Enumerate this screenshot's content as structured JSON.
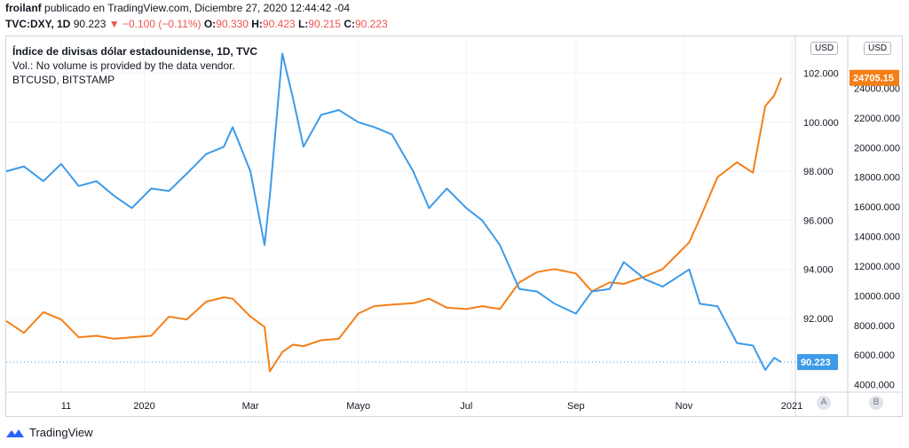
{
  "header": {
    "author": "froilanf",
    "published": "publicado en TradingView.com, Diciembre 27, 2020 12:44:42 -04",
    "symbol": "TVC:DXY, 1D",
    "last": "90.223",
    "change": "−0.100 (−0.11%)",
    "o_label": "O:",
    "o_value": "90.330",
    "h_label": "H:",
    "h_value": "90.423",
    "l_label": "L:",
    "l_value": "90.215",
    "c_label": "C:",
    "c_value": "90.223"
  },
  "legend": {
    "title": "Índice de divisas dólar estadounidense, 1D, TVC",
    "volume": "Vol.: No volume is provided by the data vendor.",
    "compare": "BTCUSD, BITSTAMP"
  },
  "currency_left": "USD",
  "currency_right": "USD",
  "footer": {
    "brand": "TradingView"
  },
  "scale_buttons": [
    "A",
    "B"
  ],
  "colors": {
    "dxy": "#3d9be9",
    "btc": "#f57f17",
    "grid": "#f0f3fa",
    "text": "#131722"
  },
  "chart_data": [
    {
      "type": "line",
      "name": "DXY",
      "title": "Índice de divisas dólar estadounidense, 1D, TVC",
      "y_axis": "left-scale",
      "ylim": [
        89.0,
        103.5
      ],
      "yticks": [
        "92.000",
        "94.000",
        "96.000",
        "98.000",
        "100.000",
        "102.000"
      ],
      "ytick_values": [
        92,
        94,
        96,
        98,
        100,
        102
      ],
      "last_value_label": "90.223",
      "x_labels": [
        "11",
        "2020",
        "Mar",
        "Mayo",
        "Jul",
        "Sep",
        "Nov",
        "2021"
      ],
      "x_label_dates": [
        "2019-11-15",
        "2020-01-01",
        "2020-03-01",
        "2020-05-01",
        "2020-07-01",
        "2020-09-01",
        "2020-11-01",
        "2021-01-01"
      ],
      "x": [
        "2019-10-15",
        "2019-10-25",
        "2019-11-05",
        "2019-11-15",
        "2019-11-25",
        "2019-12-05",
        "2019-12-15",
        "2019-12-25",
        "2020-01-05",
        "2020-01-15",
        "2020-01-25",
        "2020-02-05",
        "2020-02-15",
        "2020-02-20",
        "2020-03-01",
        "2020-03-09",
        "2020-03-12",
        "2020-03-19",
        "2020-03-25",
        "2020-03-31",
        "2020-04-10",
        "2020-04-20",
        "2020-05-01",
        "2020-05-10",
        "2020-05-20",
        "2020-06-01",
        "2020-06-10",
        "2020-06-20",
        "2020-07-01",
        "2020-07-10",
        "2020-07-20",
        "2020-07-31",
        "2020-08-10",
        "2020-08-20",
        "2020-09-01",
        "2020-09-10",
        "2020-09-20",
        "2020-09-28",
        "2020-10-10",
        "2020-10-20",
        "2020-11-04",
        "2020-11-10",
        "2020-11-20",
        "2020-12-01",
        "2020-12-10",
        "2020-12-17",
        "2020-12-22",
        "2020-12-26"
      ],
      "y": [
        98.0,
        98.2,
        97.6,
        98.3,
        97.4,
        97.6,
        97.0,
        96.5,
        97.3,
        97.2,
        97.9,
        98.7,
        99.0,
        99.8,
        98.0,
        95.0,
        97.0,
        102.8,
        101.0,
        99.0,
        100.3,
        100.5,
        100.0,
        99.8,
        99.5,
        98.0,
        96.5,
        97.3,
        96.5,
        96.0,
        95.0,
        93.2,
        93.1,
        92.6,
        92.2,
        93.1,
        93.2,
        94.3,
        93.6,
        93.3,
        94.0,
        92.6,
        92.5,
        91.0,
        90.9,
        89.9,
        90.4,
        90.223
      ]
    },
    {
      "type": "line",
      "name": "BTCUSD",
      "title": "BTCUSD, BITSTAMP",
      "y_axis": "right-scale",
      "ylim": [
        3500,
        27500
      ],
      "yticks": [
        "4000.000",
        "6000.000",
        "8000.000",
        "10000.000",
        "12000.000",
        "14000.000",
        "16000.000",
        "18000.000",
        "20000.000",
        "22000.000",
        "24000.000"
      ],
      "ytick_values": [
        4000,
        6000,
        8000,
        10000,
        12000,
        14000,
        16000,
        18000,
        20000,
        22000,
        24000
      ],
      "last_value_label": "24705.15",
      "x": [
        "2019-10-15",
        "2019-10-25",
        "2019-11-05",
        "2019-11-15",
        "2019-11-25",
        "2019-12-05",
        "2019-12-15",
        "2019-12-25",
        "2020-01-05",
        "2020-01-15",
        "2020-01-25",
        "2020-02-05",
        "2020-02-15",
        "2020-02-20",
        "2020-03-01",
        "2020-03-09",
        "2020-03-12",
        "2020-03-19",
        "2020-03-25",
        "2020-03-31",
        "2020-04-10",
        "2020-04-20",
        "2020-05-01",
        "2020-05-10",
        "2020-05-20",
        "2020-06-01",
        "2020-06-10",
        "2020-06-20",
        "2020-07-01",
        "2020-07-10",
        "2020-07-20",
        "2020-07-31",
        "2020-08-10",
        "2020-08-20",
        "2020-09-01",
        "2020-09-10",
        "2020-09-20",
        "2020-09-28",
        "2020-10-10",
        "2020-10-20",
        "2020-11-04",
        "2020-11-10",
        "2020-11-20",
        "2020-12-01",
        "2020-12-10",
        "2020-12-17",
        "2020-12-22",
        "2020-12-26"
      ],
      "y": [
        8300,
        7500,
        8900,
        8400,
        7200,
        7300,
        7100,
        7200,
        7300,
        8600,
        8400,
        9600,
        9900,
        9800,
        8600,
        7900,
        4900,
        6200,
        6700,
        6600,
        7000,
        7100,
        8800,
        9300,
        9400,
        9500,
        9800,
        9200,
        9100,
        9300,
        9100,
        10900,
        11600,
        11800,
        11500,
        10300,
        10900,
        10800,
        11300,
        11800,
        13600,
        15200,
        18000,
        19000,
        18300,
        22800,
        23500,
        24705.15
      ]
    }
  ]
}
